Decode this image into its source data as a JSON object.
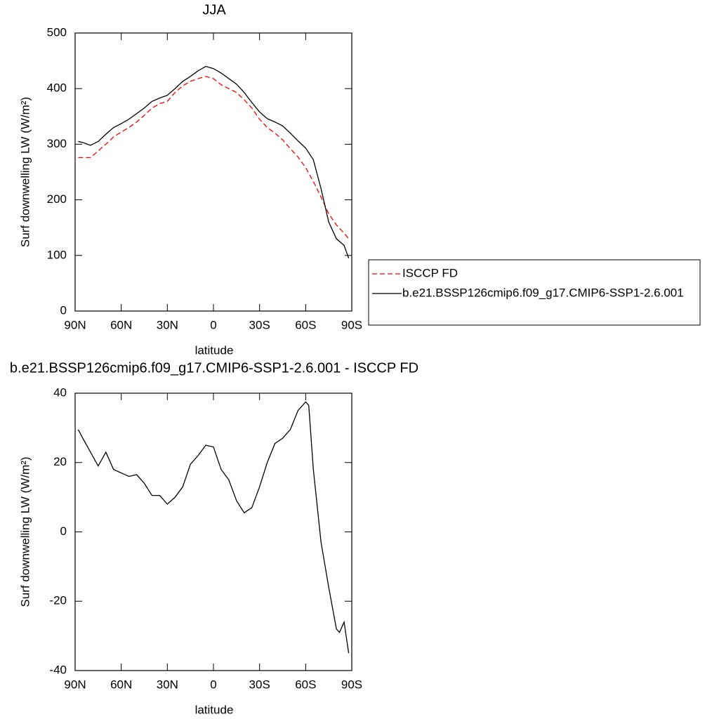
{
  "chart_data": [
    {
      "type": "line",
      "title": "JJA",
      "xlabel": "latitude",
      "ylabel": "Surf downwelling LW (W/m²)",
      "xlim": [
        90,
        -90
      ],
      "xticks": [
        {
          "value": 90,
          "label": "90N"
        },
        {
          "value": 60,
          "label": "60N"
        },
        {
          "value": 30,
          "label": "30N"
        },
        0,
        {
          "value": -30,
          "label": "30S"
        },
        {
          "value": -60,
          "label": "60S"
        },
        {
          "value": -90,
          "label": "90S"
        }
      ],
      "ylim": [
        0,
        500
      ],
      "yticks": [
        0,
        100,
        200,
        300,
        400,
        500
      ],
      "legend": "right",
      "x": [
        88,
        85,
        80,
        75,
        70,
        65,
        60,
        55,
        50,
        45,
        40,
        35,
        30,
        25,
        20,
        15,
        10,
        5,
        0,
        -5,
        -10,
        -15,
        -20,
        -25,
        -30,
        -35,
        -40,
        -45,
        -50,
        -55,
        -60,
        -65,
        -70,
        -75,
        -80,
        -85,
        -88
      ],
      "series": [
        {
          "name": "ISCCP FD",
          "color": "#ff0000",
          "line_style": "dashed",
          "values": [
            276,
            276,
            276,
            288,
            300,
            313,
            322,
            330,
            340,
            352,
            365,
            373,
            377,
            393,
            405,
            413,
            418,
            422,
            418,
            407,
            400,
            393,
            380,
            365,
            345,
            330,
            320,
            308,
            292,
            277,
            258,
            233,
            205,
            175,
            155,
            140,
            130
          ]
        },
        {
          "name": "b.e21.BSSP126cmip6.f09_g17.CMIP6-SSP1-2.6.001",
          "color": "#000000",
          "line_style": "solid",
          "values": [
            305,
            303,
            298,
            305,
            318,
            330,
            337,
            345,
            355,
            365,
            377,
            383,
            388,
            400,
            413,
            422,
            432,
            440,
            436,
            428,
            418,
            408,
            393,
            375,
            358,
            346,
            340,
            333,
            320,
            306,
            293,
            272,
            220,
            160,
            130,
            118,
            95
          ]
        }
      ]
    },
    {
      "type": "line",
      "title": "b.e21.BSSP126cmip6.f09_g17.CMIP6-SSP1-2.6.001 - ISCCP FD",
      "xlabel": "latitude",
      "ylabel": "Surf downwelling LW (W/m²)",
      "xlim": [
        90,
        -90
      ],
      "xticks": [
        {
          "value": 90,
          "label": "90N"
        },
        {
          "value": 60,
          "label": "60N"
        },
        {
          "value": 30,
          "label": "30N"
        },
        0,
        {
          "value": -30,
          "label": "30S"
        },
        {
          "value": -60,
          "label": "60S"
        },
        {
          "value": -90,
          "label": "90S"
        }
      ],
      "ylim": [
        -40,
        40
      ],
      "yticks": [
        -40,
        -20,
        0,
        20,
        40
      ],
      "x": [
        88,
        85,
        80,
        75,
        70,
        65,
        60,
        55,
        50,
        45,
        40,
        35,
        30,
        25,
        20,
        15,
        10,
        5,
        0,
        -5,
        -10,
        -15,
        -20,
        -25,
        -30,
        -35,
        -40,
        -45,
        -50,
        -55,
        -60,
        -62,
        -65,
        -70,
        -75,
        -80,
        -82,
        -85,
        -88
      ],
      "series": [
        {
          "color": "#000000",
          "line_style": "solid",
          "values": [
            29.5,
            27,
            23,
            19,
            23,
            18,
            17,
            16,
            16.5,
            14,
            10.5,
            10.5,
            8,
            10,
            13,
            19.5,
            22,
            25,
            24.5,
            18,
            15,
            9,
            5.5,
            7,
            13,
            20,
            25.5,
            27,
            29.5,
            35,
            37.5,
            36.5,
            18,
            -3,
            -16,
            -28,
            -29,
            -26,
            -35
          ]
        }
      ]
    }
  ]
}
